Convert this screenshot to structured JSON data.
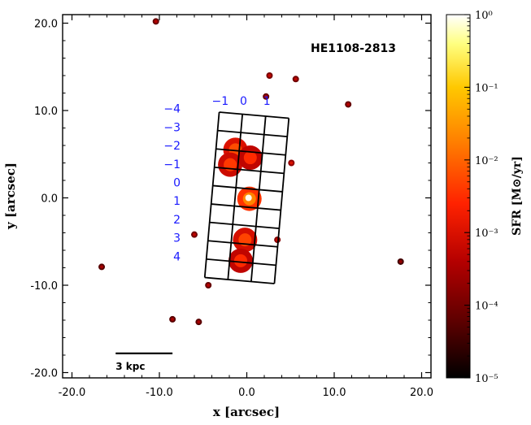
{
  "chart_data": {
    "type": "heatmap",
    "object_label": "HE1108-2813",
    "xlabel": "x [arcsec]",
    "ylabel": "y [arcsec]",
    "xlim": [
      -21,
      21
    ],
    "ylim": [
      -21,
      21
    ],
    "x_ticks": [
      "-20.0",
      "-10.0",
      "0.0",
      "10.0",
      "20.0"
    ],
    "y_ticks": [
      "20.0",
      "10.0",
      "0.0",
      "-10.0",
      "-20.0"
    ],
    "x_tick_values": [
      -20,
      -10,
      0,
      10,
      20
    ],
    "y_tick_values": [
      20,
      10,
      0,
      -10,
      -20
    ],
    "colorbar": {
      "label": "SFR [M⊙/yr]",
      "scale": "log",
      "range": [
        1e-05,
        1
      ],
      "ticks": [
        "10⁻⁵",
        "10⁻⁴",
        "10⁻³",
        "10⁻²",
        "10⁻¹",
        "10⁰"
      ],
      "colors": [
        "#000000",
        "#5a0000",
        "#b40000",
        "#ff2200",
        "#ff7a00",
        "#ffc800",
        "#ffff80",
        "#ffffff"
      ]
    },
    "grid": {
      "columns": [
        "−1",
        "0",
        "1"
      ],
      "rows": [
        "−4",
        "−3",
        "−2",
        "−1",
        "0",
        "1",
        "2",
        "3",
        "4"
      ],
      "n_columns": 3,
      "n_rows": 9,
      "x_range": [
        -4,
        4
      ],
      "y_range": [
        -9.5,
        9.5
      ],
      "tilt_deg": -5
    },
    "scale_bar": {
      "label": "3 kpc",
      "x_range": [
        -15,
        -8.5
      ],
      "y": -17.8
    },
    "emission": {
      "unit": "M⊙/yr",
      "peak": {
        "x": 0.2,
        "y": 0.0,
        "sfr": 0.9
      },
      "knots": [
        {
          "x": -1.3,
          "y": 5.5,
          "sfr": 0.006
        },
        {
          "x": -1.9,
          "y": 3.8,
          "sfr": 0.004
        },
        {
          "x": 0.4,
          "y": 4.6,
          "sfr": 0.003
        },
        {
          "x": 0.3,
          "y": -0.1,
          "sfr": 0.02
        },
        {
          "x": -0.2,
          "y": -4.8,
          "sfr": 0.005
        },
        {
          "x": -0.7,
          "y": -7.2,
          "sfr": 0.003
        },
        {
          "x": 5.1,
          "y": 4.0,
          "sfr": 0.001
        },
        {
          "x": 3.5,
          "y": -4.8,
          "sfr": 0.0008
        },
        {
          "x": -6.0,
          "y": -4.2,
          "sfr": 0.0005
        },
        {
          "x": 2.6,
          "y": 14.0,
          "sfr": 0.0006
        },
        {
          "x": 5.6,
          "y": 13.6,
          "sfr": 0.0005
        },
        {
          "x": 11.6,
          "y": 10.7,
          "sfr": 0.0004
        },
        {
          "x": -10.4,
          "y": 20.2,
          "sfr": 0.0004
        },
        {
          "x": 2.2,
          "y": 11.6,
          "sfr": 0.0004
        },
        {
          "x": -4.4,
          "y": -10.0,
          "sfr": 0.0004
        },
        {
          "x": -16.6,
          "y": -7.9,
          "sfr": 0.0003
        },
        {
          "x": -8.5,
          "y": -13.9,
          "sfr": 0.0003
        },
        {
          "x": -5.5,
          "y": -14.2,
          "sfr": 0.0003
        },
        {
          "x": 17.6,
          "y": -7.3,
          "sfr": 0.0002
        }
      ]
    }
  }
}
